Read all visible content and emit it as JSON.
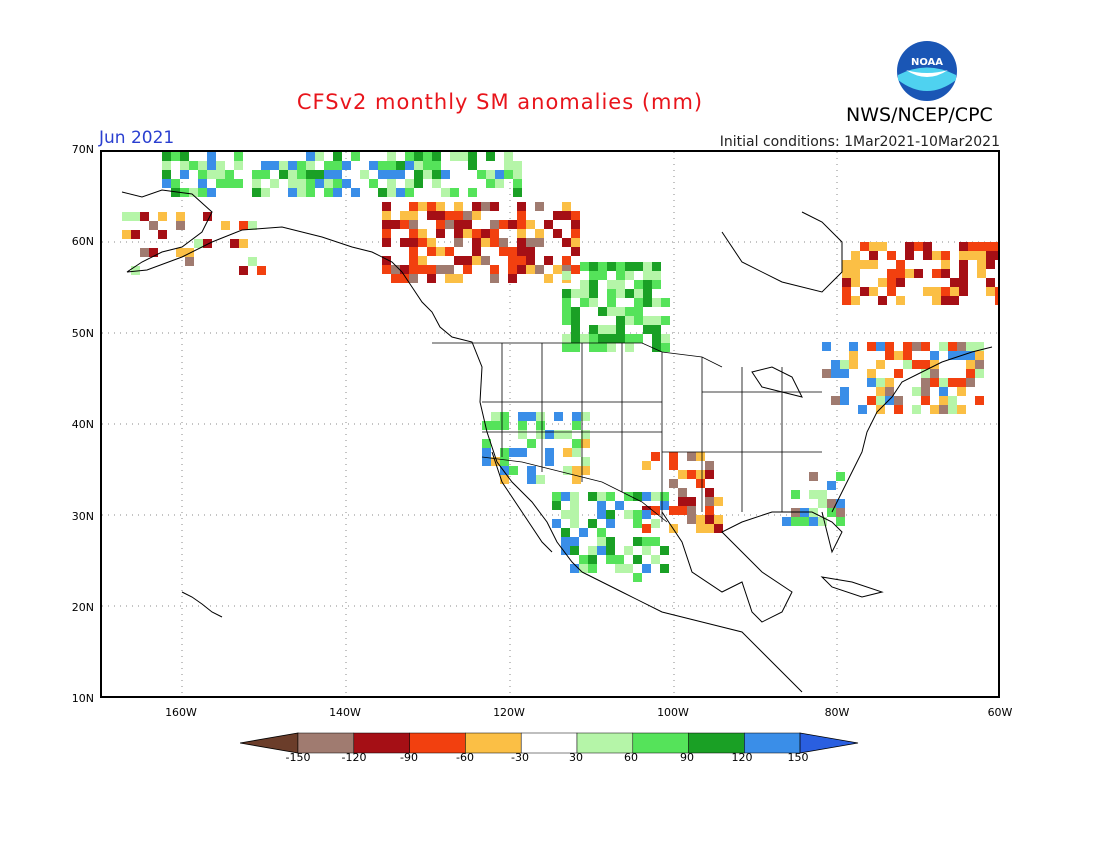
{
  "header": {
    "title": "CFSv2 monthly SM anomalies (mm)",
    "agency": "NWS/NCEP/CPC",
    "logo_text": "NOAA",
    "month": "Jun 2021",
    "initial_conditions": "Initial conditions: 1Mar2021-10Mar2021"
  },
  "map": {
    "lat_labels": [
      "70N",
      "60N",
      "50N",
      "40N",
      "30N",
      "20N",
      "10N"
    ],
    "lon_labels": [
      "160W",
      "140W",
      "120W",
      "100W",
      "80W",
      "60W"
    ],
    "lat_range": [
      10,
      70
    ],
    "lon_range": [
      -170,
      -60
    ]
  },
  "colorbar": {
    "labels": [
      "-150",
      "-120",
      "-90",
      "-60",
      "-30",
      "30",
      "60",
      "90",
      "120",
      "150"
    ],
    "colors": [
      "#6b3d2a",
      "#a07b70",
      "#a50f15",
      "#f2400f",
      "#fbbf45",
      "#ffffff",
      "#b5f5a8",
      "#55e35a",
      "#1aa025",
      "#3a8ee8",
      "#2a5fe0"
    ]
  },
  "colors": {
    "title": "#e8141b",
    "month": "#2a3fd0"
  }
}
